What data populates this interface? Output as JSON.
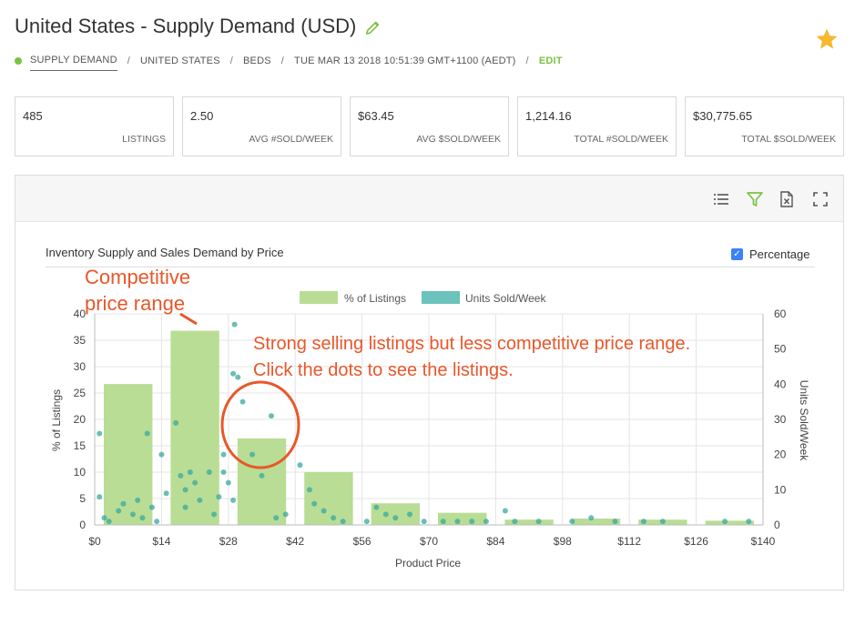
{
  "header": {
    "title": "United States - Supply Demand (USD)"
  },
  "breadcrumb": {
    "items": [
      "SUPPLY DEMAND",
      "UNITED STATES",
      "BEDS",
      "TUE MAR 13 2018 10:51:39 GMT+1100 (AEDT)"
    ],
    "separator": "/",
    "edit": "EDIT"
  },
  "stats": [
    {
      "value": "485",
      "label": "LISTINGS"
    },
    {
      "value": "2.50",
      "label": "AVG #SOLD/WEEK"
    },
    {
      "value": "$63.45",
      "label": "AVG $SOLD/WEEK"
    },
    {
      "value": "1,214.16",
      "label": "TOTAL #SOLD/WEEK"
    },
    {
      "value": "$30,775.65",
      "label": "TOTAL $SOLD/WEEK"
    }
  ],
  "toolbar": {
    "icons": [
      "list-icon",
      "filter-icon",
      "excel-export-icon",
      "fullscreen-icon"
    ]
  },
  "chart_header": {
    "title": "Inventory Supply and Sales Demand by Price",
    "checkbox_label": "Percentage",
    "checkbox_checked": true
  },
  "annotations": {
    "competitive_line1": "Competitive",
    "competitive_line2": "price range",
    "strong_line1": "Strong selling listings but less competitive price range.",
    "strong_line2": "Click the dots to see the listings."
  },
  "colors": {
    "bar": "#b9dd94",
    "dot": "#3aa8a0",
    "annotation": "#e8572a",
    "accent_green": "#7cc242",
    "star": "#f5b82e"
  },
  "chart_data": {
    "type": "bar",
    "title": "Inventory Supply and Sales Demand by Price",
    "xlabel": "Product Price",
    "ylabel": "% of Listings",
    "y2label": "Units Sold/Week",
    "ylim": [
      0,
      40
    ],
    "y2lim": [
      0,
      60
    ],
    "yticks": [
      0,
      5,
      10,
      15,
      20,
      25,
      30,
      35,
      40
    ],
    "y2ticks": [
      0,
      10,
      20,
      30,
      40,
      50,
      60
    ],
    "xlim": [
      0,
      140
    ],
    "xticks": [
      0,
      14,
      28,
      42,
      56,
      70,
      84,
      98,
      112,
      126,
      140
    ],
    "xtick_labels": [
      "$0",
      "$14",
      "$28",
      "$42",
      "$56",
      "$70",
      "$84",
      "$98",
      "$112",
      "$126",
      "$140"
    ],
    "legend": [
      "% of Listings",
      "Units Sold/Week"
    ],
    "legend_position": "top-center",
    "grid": true,
    "bars": [
      {
        "x0": 0,
        "x1": 14,
        "value": 26.7
      },
      {
        "x0": 14,
        "x1": 28,
        "value": 36.8
      },
      {
        "x0": 28,
        "x1": 42,
        "value": 16.4
      },
      {
        "x0": 42,
        "x1": 56,
        "value": 10.0
      },
      {
        "x0": 56,
        "x1": 70,
        "value": 4.1
      },
      {
        "x0": 70,
        "x1": 84,
        "value": 2.3
      },
      {
        "x0": 84,
        "x1": 98,
        "value": 1.0
      },
      {
        "x0": 98,
        "x1": 112,
        "value": 1.2
      },
      {
        "x0": 112,
        "x1": 126,
        "value": 1.0
      },
      {
        "x0": 126,
        "x1": 140,
        "value": 0.8
      }
    ],
    "scatter": [
      {
        "x": 1,
        "y": 26
      },
      {
        "x": 1,
        "y": 8
      },
      {
        "x": 2,
        "y": 2
      },
      {
        "x": 3,
        "y": 1
      },
      {
        "x": 5,
        "y": 4
      },
      {
        "x": 6,
        "y": 6
      },
      {
        "x": 8,
        "y": 3
      },
      {
        "x": 9,
        "y": 7
      },
      {
        "x": 10,
        "y": 2
      },
      {
        "x": 11,
        "y": 26
      },
      {
        "x": 12,
        "y": 5
      },
      {
        "x": 13,
        "y": 1
      },
      {
        "x": 14,
        "y": 20
      },
      {
        "x": 15,
        "y": 9
      },
      {
        "x": 17,
        "y": 29
      },
      {
        "x": 18,
        "y": 14
      },
      {
        "x": 19,
        "y": 10
      },
      {
        "x": 19,
        "y": 5
      },
      {
        "x": 20,
        "y": 15
      },
      {
        "x": 21,
        "y": 12
      },
      {
        "x": 22,
        "y": 7
      },
      {
        "x": 24,
        "y": 15
      },
      {
        "x": 25,
        "y": 3
      },
      {
        "x": 26,
        "y": 8
      },
      {
        "x": 27,
        "y": 20
      },
      {
        "x": 27,
        "y": 15
      },
      {
        "x": 28,
        "y": 12
      },
      {
        "x": 29,
        "y": 7
      },
      {
        "x": 29.3,
        "y": 57
      },
      {
        "x": 29,
        "y": 43
      },
      {
        "x": 30,
        "y": 42
      },
      {
        "x": 31,
        "y": 35
      },
      {
        "x": 33,
        "y": 20
      },
      {
        "x": 35,
        "y": 14
      },
      {
        "x": 37,
        "y": 31
      },
      {
        "x": 38,
        "y": 2
      },
      {
        "x": 40,
        "y": 3
      },
      {
        "x": 43,
        "y": 17
      },
      {
        "x": 45,
        "y": 10
      },
      {
        "x": 46,
        "y": 6
      },
      {
        "x": 48,
        "y": 4
      },
      {
        "x": 50,
        "y": 2
      },
      {
        "x": 52,
        "y": 1
      },
      {
        "x": 57,
        "y": 1
      },
      {
        "x": 59,
        "y": 5
      },
      {
        "x": 61,
        "y": 3
      },
      {
        "x": 63,
        "y": 2
      },
      {
        "x": 66,
        "y": 3
      },
      {
        "x": 69,
        "y": 1
      },
      {
        "x": 73,
        "y": 1
      },
      {
        "x": 76,
        "y": 1
      },
      {
        "x": 79,
        "y": 1
      },
      {
        "x": 82,
        "y": 1
      },
      {
        "x": 86,
        "y": 4
      },
      {
        "x": 88,
        "y": 1
      },
      {
        "x": 93,
        "y": 1
      },
      {
        "x": 100,
        "y": 1
      },
      {
        "x": 104,
        "y": 2
      },
      {
        "x": 109,
        "y": 1
      },
      {
        "x": 115,
        "y": 1
      },
      {
        "x": 119,
        "y": 1
      },
      {
        "x": 132,
        "y": 1
      },
      {
        "x": 137,
        "y": 1
      }
    ]
  }
}
